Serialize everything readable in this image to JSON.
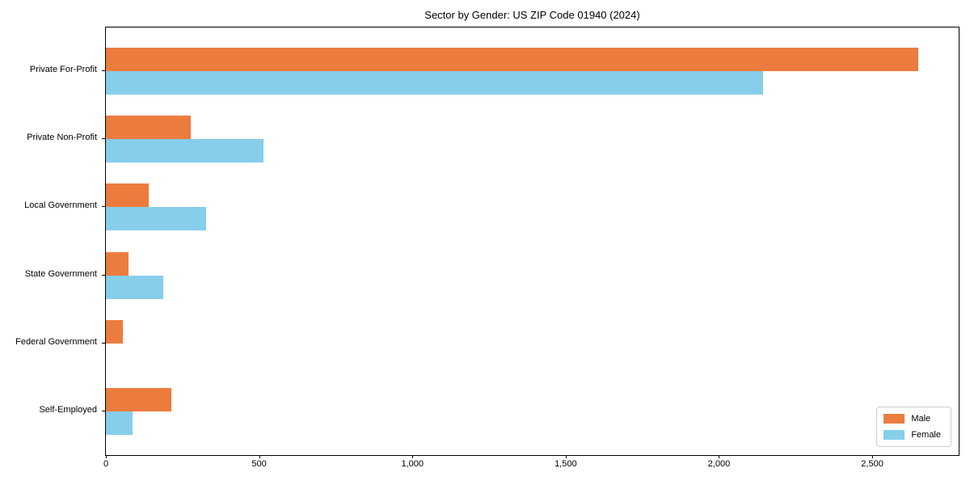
{
  "title": "Sector by Gender: US ZIP Code 01940 (2024)",
  "chart_data": {
    "type": "bar",
    "orientation": "horizontal",
    "title": "Sector by Gender: US ZIP Code 01940 (2024)",
    "categories": [
      "Private For-Profit",
      "Private Non-Profit",
      "Local Government",
      "State Government",
      "Federal Government",
      "Self-Employed"
    ],
    "series": [
      {
        "name": "Male",
        "color": "#EC7C3E",
        "values": [
          2650,
          276,
          141,
          73,
          55,
          213
        ]
      },
      {
        "name": "Female",
        "color": "#87CEEB",
        "values": [
          2143,
          514,
          327,
          187,
          0,
          87
        ]
      }
    ],
    "xlabel": "",
    "ylabel": "",
    "xlim": [
      0,
      2782
    ],
    "xticks": {
      "values": [
        0,
        500,
        1000,
        1500,
        2000,
        2500
      ],
      "labels": [
        "0",
        "500",
        "1,000",
        "1,500",
        "2,000",
        "2,500"
      ]
    },
    "grid": false,
    "legend_position": "lower right",
    "legend_entries": [
      "Male",
      "Female"
    ]
  }
}
